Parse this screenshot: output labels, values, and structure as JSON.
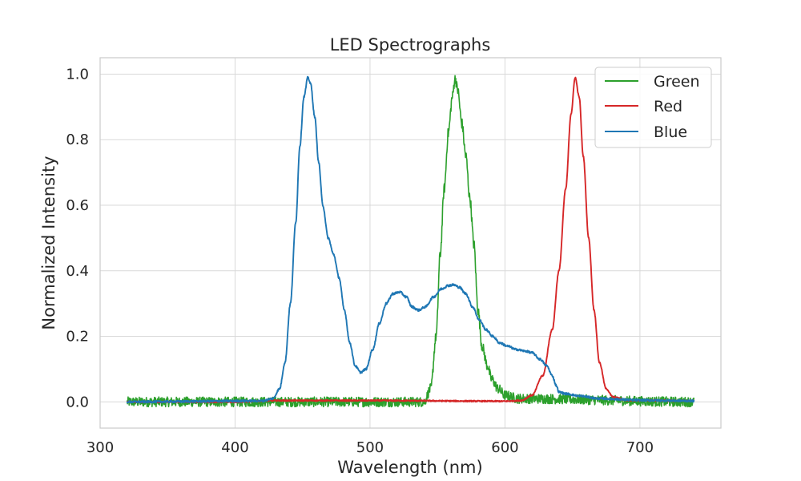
{
  "chart_data": {
    "type": "line",
    "title": "LED Spectrographs",
    "xlabel": "Wavelength (nm)",
    "ylabel": "Normalized Intensity",
    "xlim": [
      300,
      760
    ],
    "ylim": [
      -0.08,
      1.05
    ],
    "x_ticks": [
      300,
      400,
      500,
      600,
      700
    ],
    "y_ticks": [
      0.0,
      0.2,
      0.4,
      0.6,
      0.8,
      1.0
    ],
    "x_tick_labels": [
      "300",
      "400",
      "500",
      "600",
      "700"
    ],
    "y_tick_labels": [
      "0.0",
      "0.2",
      "0.4",
      "0.6",
      "0.8",
      "1.0"
    ],
    "grid": true,
    "legend_position": "top-right",
    "x_range": [
      320,
      740
    ],
    "series": [
      {
        "name": "Green",
        "color": "#2ca02c",
        "noise_amplitude": 0.015,
        "points": [
          [
            320,
            0.0
          ],
          [
            540,
            0.0
          ],
          [
            545,
            0.04
          ],
          [
            549,
            0.2
          ],
          [
            552,
            0.45
          ],
          [
            555,
            0.65
          ],
          [
            558,
            0.82
          ],
          [
            561,
            0.93
          ],
          [
            563,
            0.99
          ],
          [
            565,
            0.95
          ],
          [
            568,
            0.85
          ],
          [
            571,
            0.75
          ],
          [
            574,
            0.62
          ],
          [
            577,
            0.48
          ],
          [
            580,
            0.28
          ],
          [
            583,
            0.17
          ],
          [
            587,
            0.11
          ],
          [
            590,
            0.07
          ],
          [
            595,
            0.04
          ],
          [
            600,
            0.02
          ],
          [
            610,
            0.01
          ],
          [
            740,
            0.0
          ]
        ]
      },
      {
        "name": "Red",
        "color": "#d62728",
        "noise_amplitude": 0.002,
        "points": [
          [
            320,
            0.0
          ],
          [
            400,
            0.0
          ],
          [
            430,
            0.004
          ],
          [
            500,
            0.004
          ],
          [
            600,
            0.002
          ],
          [
            612,
            0.004
          ],
          [
            620,
            0.02
          ],
          [
            628,
            0.08
          ],
          [
            635,
            0.22
          ],
          [
            640,
            0.4
          ],
          [
            645,
            0.65
          ],
          [
            649,
            0.88
          ],
          [
            652,
            0.99
          ],
          [
            655,
            0.93
          ],
          [
            658,
            0.75
          ],
          [
            662,
            0.5
          ],
          [
            666,
            0.28
          ],
          [
            670,
            0.12
          ],
          [
            675,
            0.04
          ],
          [
            680,
            0.015
          ],
          [
            690,
            0.005
          ],
          [
            740,
            0.003
          ]
        ]
      },
      {
        "name": "Blue",
        "color": "#1f77b4",
        "noise_amplitude": 0.003,
        "points": [
          [
            320,
            0.0
          ],
          [
            420,
            0.003
          ],
          [
            428,
            0.01
          ],
          [
            433,
            0.04
          ],
          [
            437,
            0.12
          ],
          [
            441,
            0.3
          ],
          [
            445,
            0.55
          ],
          [
            448,
            0.78
          ],
          [
            451,
            0.93
          ],
          [
            454,
            0.99
          ],
          [
            456,
            0.97
          ],
          [
            459,
            0.87
          ],
          [
            462,
            0.73
          ],
          [
            465,
            0.6
          ],
          [
            469,
            0.5
          ],
          [
            473,
            0.45
          ],
          [
            477,
            0.38
          ],
          [
            481,
            0.28
          ],
          [
            485,
            0.18
          ],
          [
            489,
            0.11
          ],
          [
            493,
            0.09
          ],
          [
            497,
            0.1
          ],
          [
            502,
            0.16
          ],
          [
            507,
            0.24
          ],
          [
            512,
            0.3
          ],
          [
            517,
            0.33
          ],
          [
            522,
            0.335
          ],
          [
            527,
            0.32
          ],
          [
            531,
            0.29
          ],
          [
            536,
            0.28
          ],
          [
            541,
            0.29
          ],
          [
            547,
            0.32
          ],
          [
            553,
            0.345
          ],
          [
            558,
            0.355
          ],
          [
            562,
            0.357
          ],
          [
            566,
            0.35
          ],
          [
            571,
            0.33
          ],
          [
            576,
            0.29
          ],
          [
            581,
            0.25
          ],
          [
            586,
            0.22
          ],
          [
            591,
            0.2
          ],
          [
            596,
            0.18
          ],
          [
            602,
            0.17
          ],
          [
            608,
            0.16
          ],
          [
            615,
            0.155
          ],
          [
            620,
            0.15
          ],
          [
            626,
            0.13
          ],
          [
            631,
            0.11
          ],
          [
            635,
            0.08
          ],
          [
            638,
            0.05
          ],
          [
            640,
            0.03
          ],
          [
            645,
            0.025
          ],
          [
            655,
            0.018
          ],
          [
            670,
            0.01
          ],
          [
            700,
            0.005
          ],
          [
            740,
            0.003
          ]
        ]
      }
    ]
  }
}
